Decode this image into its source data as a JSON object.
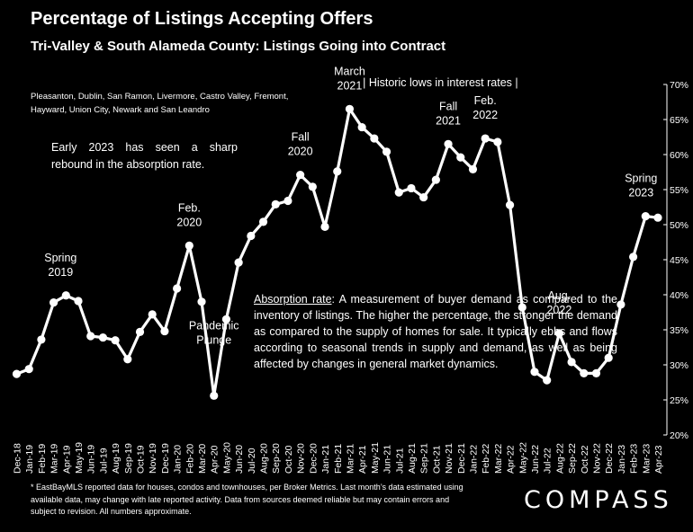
{
  "header": {
    "title": "Percentage of Listings Accepting Offers",
    "subtitle": "Tri-Valley & South Alameda County: Listings Going into Contract"
  },
  "cities_text": "Pleasanton, Dublin, San Ramon, Livermore, Castro Valley, Fremont, Hayward, Union City, Newark and San Leandro",
  "note_text": "Early 2023 has seen a sharp rebound in the absorption rate.",
  "absorption": {
    "term": "Absorption rate",
    "definition": ": A measurement of buyer demand as compared to the inventory of listings. The higher the percentage, the stronger the demand as compared to the supply of homes for sale. It typically ebbs and flows according to seasonal trends in supply and demand, as well as being affected by changes in general market dynamics."
  },
  "footnote": "* EastBayMLS reported data for houses, condos and townhouses, per Broker Metrics. Last month’s data estimated using available data, may change with late reported activity. Data from sources deemed reliable but may contain errors and subject to revision. All numbers approximate.",
  "logo": "COMPASS",
  "chart_data": {
    "type": "line",
    "title": "Percentage of Listings Accepting Offers",
    "xlabel": "",
    "ylabel": "",
    "ylim": [
      20,
      70
    ],
    "y_ticks": [
      "20%",
      "25%",
      "30%",
      "35%",
      "40%",
      "45%",
      "50%",
      "55%",
      "60%",
      "65%",
      "70%"
    ],
    "y_axis_side": "right",
    "grid": false,
    "categories": [
      "Dec-18",
      "Jan-19",
      "Feb-19",
      "Mar-19",
      "Apr-19",
      "May-19",
      "Jun-19",
      "Jul-19",
      "Aug-19",
      "Sep-19",
      "Oct-19",
      "Nov-19",
      "Dec-19",
      "Jan-20",
      "Feb-20",
      "Mar-20",
      "Apr-20",
      "May-20",
      "Jun-20",
      "Jul-20",
      "Aug-20",
      "Sep-20",
      "Oct-20",
      "Nov-20",
      "Dec-20",
      "Jan-21",
      "Feb-21",
      "Mar-21",
      "Apr-21",
      "May-21",
      "Jun-21",
      "Jul-21",
      "Aug-21",
      "Sep-21",
      "Oct-21",
      "Nov-21",
      "Dec-21",
      "Jan-22",
      "Feb-22",
      "Mar-22",
      "Apr-22",
      "May-22",
      "Jun-22",
      "Jul-22",
      "Aug-22",
      "Sep-22",
      "Oct-22",
      "Nov-22",
      "Dec-22",
      "Jan-23",
      "Feb-23",
      "Mar-23",
      "Apr-23"
    ],
    "series": [
      {
        "values": [
          28.7,
          29.4,
          33.6,
          38.9,
          39.9,
          39.1,
          34.1,
          33.9,
          33.5,
          30.8,
          34.7,
          37.2,
          34.8,
          40.9,
          47.0,
          39.0,
          25.6,
          36.5,
          44.6,
          48.4,
          50.4,
          52.9,
          53.4,
          57.1,
          55.4,
          49.7,
          57.6,
          66.5,
          63.9,
          62.3,
          60.4,
          54.6,
          55.2,
          53.9,
          56.4,
          61.5,
          59.6,
          57.9,
          62.3,
          61.8,
          52.8,
          38.2,
          29.0,
          27.8,
          34.5,
          30.4,
          28.8,
          28.8,
          31.0,
          38.6,
          45.4,
          51.2,
          51.0
        ]
      }
    ],
    "line_color": "#ffffff",
    "annotations": [
      {
        "text": [
          "Spring",
          "2019"
        ],
        "at": "Apr-19"
      },
      {
        "text": [
          "Feb.",
          "2020"
        ],
        "at": "Feb-20"
      },
      {
        "text": [
          "Pandemic",
          "Plunge"
        ],
        "at": "Apr-20"
      },
      {
        "text": [
          "Fall",
          "2020"
        ],
        "at": "Nov-20"
      },
      {
        "text": [
          "March",
          "2021"
        ],
        "at": "Mar-21"
      },
      {
        "text": [
          "| Historic lows in interest rates |"
        ],
        "at": "Oct-21"
      },
      {
        "text": [
          "Fall",
          "2021"
        ],
        "at": "Nov-21"
      },
      {
        "text": [
          "Feb.",
          "2022"
        ],
        "at": "Feb-22"
      },
      {
        "text": [
          "Aug.",
          "2022"
        ],
        "at": "Aug-22"
      },
      {
        "text": [
          "Spring",
          "2023"
        ],
        "at": "Mar-23"
      }
    ]
  }
}
